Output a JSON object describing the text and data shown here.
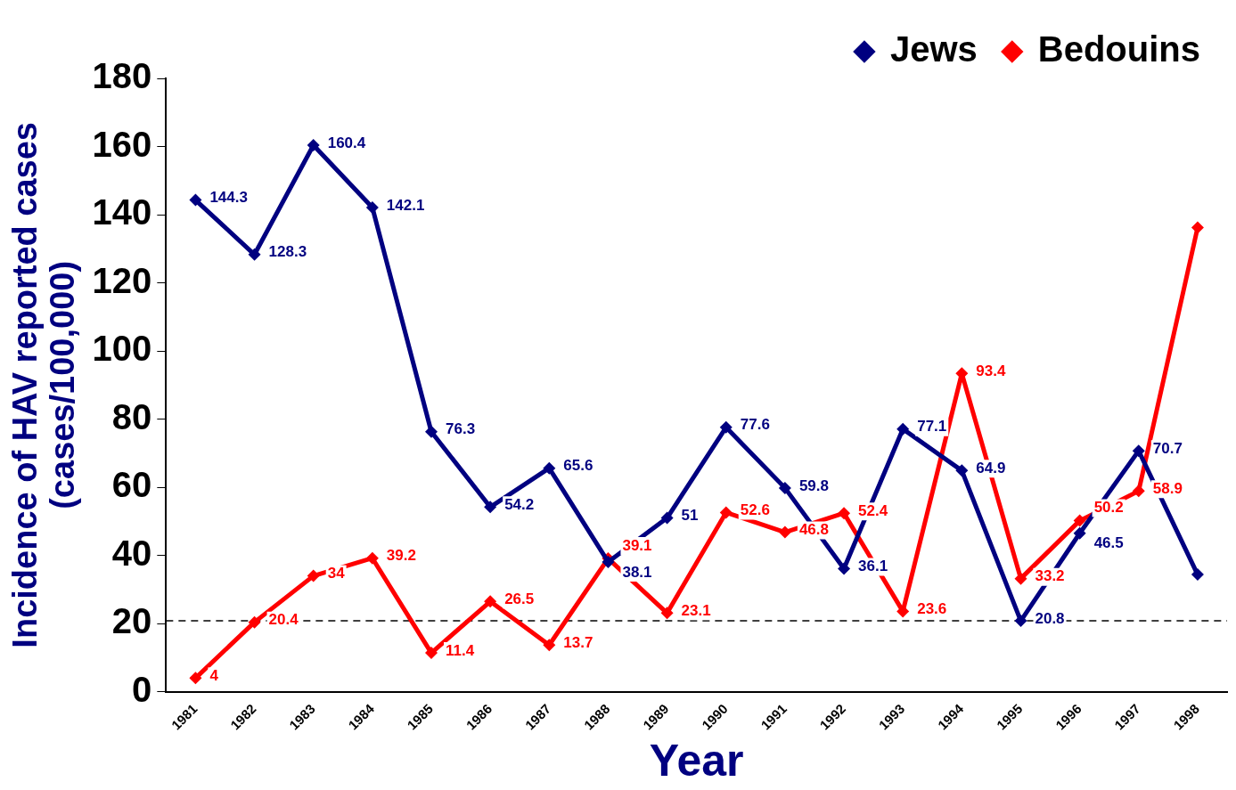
{
  "chart_data": {
    "type": "line",
    "xlabel": "Year",
    "ylabel": "Incidence of HAV reported cases\n(cases/100,000)",
    "categories": [
      "1981",
      "1982",
      "1983",
      "1984",
      "1985",
      "1986",
      "1987",
      "1988",
      "1989",
      "1990",
      "1991",
      "1992",
      "1993",
      "1994",
      "1995",
      "1996",
      "1997",
      "1998"
    ],
    "series": [
      {
        "name": "Jews",
        "color": "#000080",
        "values": [
          144.3,
          128.3,
          160.4,
          142.1,
          76.3,
          54.2,
          65.6,
          38.1,
          51,
          77.6,
          59.8,
          36.1,
          77.1,
          64.9,
          20.8,
          46.5,
          70.7,
          34.4
        ],
        "value_labels": [
          "144.3",
          "128.3",
          "160.4",
          "142.1",
          "76.3",
          "54.2",
          "65.6",
          "38.1",
          "51",
          "77.6",
          "59.8",
          "36.1",
          "77.1",
          "64.9",
          "20.8",
          "46.5",
          "70.7",
          null
        ]
      },
      {
        "name": "Bedouins",
        "color": "#ff0000",
        "values": [
          4,
          20.4,
          34,
          39.2,
          11.4,
          26.5,
          13.7,
          39.1,
          23.1,
          52.6,
          46.8,
          52.4,
          23.6,
          93.4,
          33.2,
          50.2,
          58.9,
          136.2
        ],
        "value_labels": [
          "4",
          "20.4",
          "34",
          "39.2",
          "11.4",
          "26.5",
          "13.7",
          "39.1",
          "23.1",
          "52.6",
          "46.8",
          "52.4",
          "23.6",
          "93.4",
          "33.2",
          "50.2",
          "58.9",
          null
        ]
      }
    ],
    "ylim": [
      0,
      180
    ],
    "yticks": [
      0,
      20,
      40,
      60,
      80,
      100,
      120,
      140,
      160,
      180
    ],
    "ref_lines": [
      {
        "axis": "y",
        "value": 20.8,
        "color": "#000000",
        "line_style": "dashed"
      }
    ],
    "grid": false,
    "legend": "top right",
    "marker": "diamond",
    "line_style": "solid"
  }
}
